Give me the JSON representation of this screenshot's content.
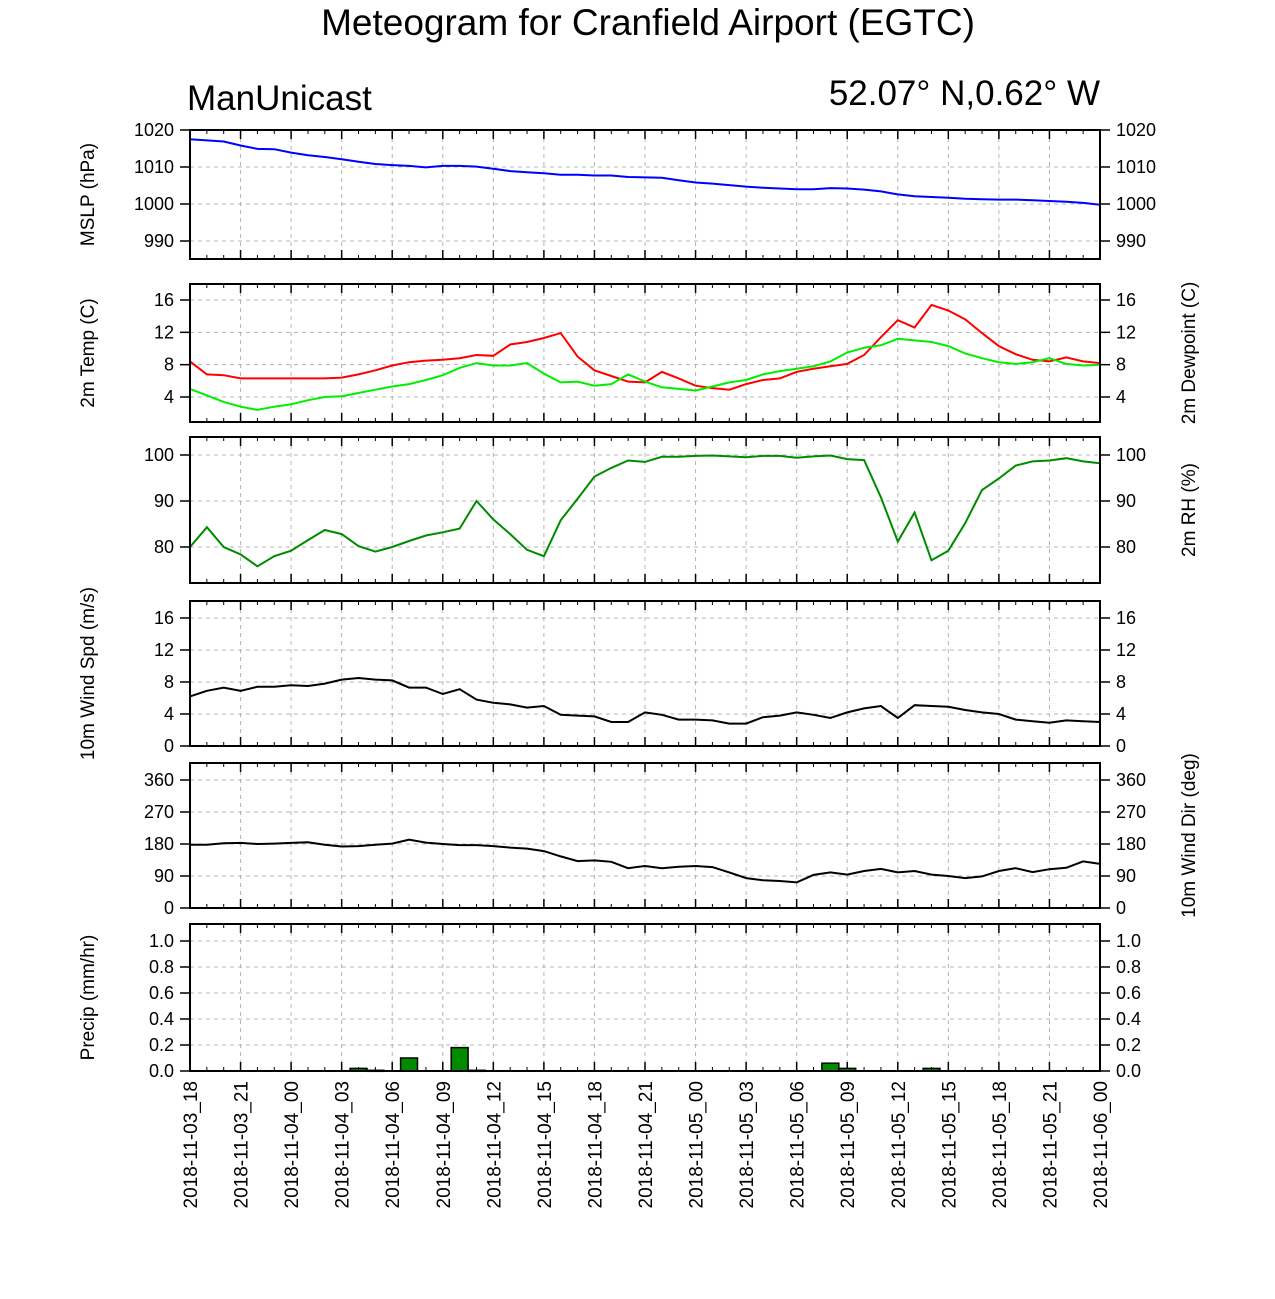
{
  "header": {
    "title": "Meteogram for Cranfield Airport (EGTC)",
    "model": "ManUnicast",
    "coords": "52.07° N,0.62° W"
  },
  "x_tick_labels": [
    "2018-11-03_18",
    "2018-11-03_21",
    "2018-11-04_00",
    "2018-11-04_03",
    "2018-11-04_06",
    "2018-11-04_09",
    "2018-11-04_12",
    "2018-11-04_15",
    "2018-11-04_18",
    "2018-11-04_21",
    "2018-11-05_00",
    "2018-11-05_03",
    "2018-11-05_06",
    "2018-11-05_09",
    "2018-11-05_12",
    "2018-11-05_15",
    "2018-11-05_18",
    "2018-11-05_21",
    "2018-11-06_00"
  ],
  "colors": {
    "mslp": "#0000ff",
    "temp": "#ff0000",
    "dewpoint": "#00ee00",
    "rh": "#008b00",
    "wind": "#000000",
    "precip": "#008b00",
    "grid": "#b4b4b4"
  },
  "chart_data": [
    {
      "type": "line",
      "ylabel": "MSLP (hPa)",
      "ylim": [
        985,
        1020
      ],
      "yticks": [
        990,
        1000,
        1010,
        1020
      ],
      "x_hours_range": [
        0,
        54
      ],
      "series": [
        {
          "color": "mslp",
          "x": [
            0,
            1,
            2,
            3,
            4,
            5,
            6,
            7,
            8,
            9,
            10,
            11,
            12,
            13,
            14,
            15,
            16,
            17,
            18,
            19,
            20,
            21,
            22,
            23,
            24,
            25,
            26,
            27,
            28,
            29,
            30,
            31,
            32,
            33,
            34,
            35,
            36,
            37,
            38,
            39,
            40,
            41,
            42,
            43,
            44,
            45,
            46,
            47,
            48,
            49,
            50,
            51,
            52,
            53,
            54
          ],
          "values": [
            1017.5,
            1017.2,
            1016.9,
            1015.8,
            1014.9,
            1014.8,
            1013.9,
            1013.2,
            1012.7,
            1012.1,
            1011.4,
            1010.8,
            1010.5,
            1010.3,
            1009.9,
            1010.3,
            1010.3,
            1010.1,
            1009.5,
            1008.9,
            1008.6,
            1008.3,
            1007.9,
            1007.9,
            1007.7,
            1007.7,
            1007.3,
            1007.2,
            1007.1,
            1006.4,
            1005.8,
            1005.5,
            1005.1,
            1004.7,
            1004.4,
            1004.2,
            1004.0,
            1004.0,
            1004.3,
            1004.2,
            1003.9,
            1003.4,
            1002.6,
            1002.1,
            1001.9,
            1001.7,
            1001.4,
            1001.3,
            1001.2,
            1001.2,
            1001.0,
            1000.8,
            1000.6,
            1000.3,
            999.8
          ]
        }
      ]
    },
    {
      "type": "line",
      "ylabel": "2m Temp (C)",
      "ylabel_right": "2m Dewpoint (C)",
      "ylim": [
        1,
        17
      ],
      "yticks": [
        4,
        8,
        12,
        16
      ],
      "x_hours_range": [
        0,
        54
      ],
      "series": [
        {
          "color": "temp",
          "x": [
            0,
            1,
            2,
            3,
            4,
            5,
            6,
            7,
            8,
            9,
            10,
            11,
            12,
            13,
            14,
            15,
            16,
            17,
            18,
            19,
            20,
            21,
            22,
            23,
            24,
            25,
            26,
            27,
            28,
            29,
            30,
            31,
            32,
            33,
            34,
            35,
            36,
            37,
            38,
            39,
            40,
            41,
            42,
            43,
            44,
            45,
            46,
            47,
            48,
            49,
            50,
            51,
            52,
            53,
            54
          ],
          "values": [
            8.4,
            6.8,
            6.7,
            6.3,
            6.3,
            6.3,
            6.3,
            6.3,
            6.3,
            6.4,
            6.8,
            7.3,
            7.9,
            8.3,
            8.5,
            8.6,
            8.8,
            9.2,
            9.1,
            10.5,
            10.8,
            11.3,
            11.9,
            9.0,
            7.3,
            6.6,
            5.9,
            5.8,
            7.1,
            6.3,
            5.4,
            5.1,
            4.9,
            5.6,
            6.1,
            6.3,
            7.1,
            7.5,
            7.8,
            8.1,
            9.2,
            11.4,
            13.5,
            12.6,
            15.4,
            14.7,
            13.6,
            11.9,
            10.3,
            9.3,
            8.6,
            8.4,
            8.9,
            8.4,
            8.2
          ]
        },
        {
          "color": "dewpoint",
          "x": [
            0,
            1,
            2,
            3,
            4,
            5,
            6,
            7,
            8,
            9,
            10,
            11,
            12,
            13,
            14,
            15,
            16,
            17,
            18,
            19,
            20,
            21,
            22,
            23,
            24,
            25,
            26,
            27,
            28,
            29,
            30,
            31,
            32,
            33,
            34,
            35,
            36,
            37,
            38,
            39,
            40,
            41,
            42,
            43,
            44,
            45,
            46,
            47,
            48,
            49,
            50,
            51,
            52,
            53,
            54
          ],
          "values": [
            5.0,
            4.2,
            3.4,
            2.8,
            2.4,
            2.8,
            3.1,
            3.6,
            4.0,
            4.1,
            4.5,
            4.9,
            5.3,
            5.6,
            6.1,
            6.7,
            7.6,
            8.2,
            7.9,
            7.9,
            8.2,
            6.9,
            5.8,
            5.9,
            5.4,
            5.6,
            6.8,
            5.9,
            5.2,
            5.0,
            4.8,
            5.3,
            5.8,
            6.1,
            6.8,
            7.2,
            7.5,
            7.8,
            8.4,
            9.5,
            10.1,
            10.4,
            11.2,
            11.0,
            10.8,
            10.3,
            9.4,
            8.8,
            8.3,
            8.1,
            8.3,
            8.8,
            8.1,
            7.9,
            8.0
          ]
        }
      ]
    },
    {
      "type": "line",
      "ylabel_right": "2m RH (%)",
      "ylim": [
        72,
        100
      ],
      "yticks": [
        80,
        90,
        100
      ],
      "x_hours_range": [
        0,
        54
      ],
      "series": [
        {
          "color": "rh",
          "x": [
            0,
            1,
            2,
            3,
            4,
            5,
            6,
            7,
            8,
            9,
            10,
            11,
            12,
            13,
            14,
            15,
            16,
            17,
            18,
            19,
            20,
            21,
            22,
            23,
            24,
            25,
            26,
            27,
            28,
            29,
            30,
            31,
            32,
            33,
            34,
            35,
            36,
            37,
            38,
            39,
            40,
            41,
            42,
            43,
            44,
            45,
            46,
            47,
            48,
            49,
            50,
            51,
            52,
            53,
            54
          ],
          "values": [
            80.0,
            84.3,
            80.0,
            78.4,
            75.8,
            78.0,
            79.2,
            81.5,
            83.7,
            82.8,
            80.2,
            79.0,
            80.0,
            81.3,
            82.5,
            83.2,
            84.0,
            90.0,
            86.0,
            82.8,
            79.4,
            78.0,
            85.8,
            90.5,
            95.3,
            97.2,
            98.8,
            98.5,
            99.6,
            99.6,
            99.8,
            99.9,
            99.7,
            99.5,
            99.8,
            99.8,
            99.4,
            99.7,
            99.9,
            99.1,
            98.9,
            90.8,
            81.2,
            87.5,
            77.1,
            79.2,
            85.2,
            92.4,
            94.9,
            97.7,
            98.6,
            98.8,
            99.3,
            98.6,
            98.2
          ]
        }
      ]
    },
    {
      "type": "line",
      "ylabel": "10m Wind Spd (m/s)",
      "ylim": [
        0,
        16
      ],
      "yticks": [
        0,
        4,
        8,
        12,
        16
      ],
      "x_hours_range": [
        0,
        54
      ],
      "series": [
        {
          "color": "wind",
          "x": [
            0,
            1,
            2,
            3,
            4,
            5,
            6,
            7,
            8,
            9,
            10,
            11,
            12,
            13,
            14,
            15,
            16,
            17,
            18,
            19,
            20,
            21,
            22,
            23,
            24,
            25,
            26,
            27,
            28,
            29,
            30,
            31,
            32,
            33,
            34,
            35,
            36,
            37,
            38,
            39,
            40,
            41,
            42,
            43,
            44,
            45,
            46,
            47,
            48,
            49,
            50,
            51,
            52,
            53,
            54
          ],
          "values": [
            6.2,
            6.9,
            7.3,
            6.9,
            7.4,
            7.4,
            7.6,
            7.5,
            7.8,
            8.3,
            8.5,
            8.3,
            8.2,
            7.3,
            7.3,
            6.5,
            7.1,
            5.8,
            5.4,
            5.2,
            4.8,
            5.0,
            3.9,
            3.8,
            3.7,
            3.0,
            3.0,
            4.2,
            3.9,
            3.3,
            3.3,
            3.2,
            2.8,
            2.8,
            3.6,
            3.8,
            4.2,
            3.9,
            3.5,
            4.2,
            4.7,
            5.0,
            3.5,
            5.1,
            5.0,
            4.9,
            4.5,
            4.2,
            4.0,
            3.3,
            3.1,
            2.9,
            3.2,
            3.1,
            3.0
          ]
        }
      ]
    },
    {
      "type": "line",
      "ylabel_right": "10m Wind Dir (deg)",
      "ylim": [
        0,
        360
      ],
      "yticks": [
        0,
        90,
        180,
        270,
        360
      ],
      "x_hours_range": [
        0,
        54
      ],
      "series": [
        {
          "color": "wind",
          "x": [
            0,
            1,
            2,
            3,
            4,
            5,
            6,
            7,
            8,
            9,
            10,
            11,
            12,
            13,
            14,
            15,
            16,
            17,
            18,
            19,
            20,
            21,
            22,
            23,
            24,
            25,
            26,
            27,
            28,
            29,
            30,
            31,
            32,
            33,
            34,
            35,
            36,
            37,
            38,
            39,
            40,
            41,
            42,
            43,
            44,
            45,
            46,
            47,
            48,
            49,
            50,
            51,
            52,
            53,
            54
          ],
          "values": [
            178,
            178,
            182,
            183,
            180,
            181,
            183,
            185,
            178,
            173,
            174,
            178,
            181,
            192,
            184,
            180,
            177,
            177,
            174,
            170,
            167,
            160,
            145,
            132,
            134,
            130,
            112,
            118,
            112,
            116,
            118,
            115,
            100,
            84,
            78,
            76,
            72,
            93,
            100,
            94,
            104,
            110,
            100,
            104,
            94,
            90,
            84,
            89,
            104,
            112,
            101,
            109,
            113,
            131,
            124
          ]
        }
      ]
    },
    {
      "type": "bar",
      "ylabel": "Precip (mm/hr)",
      "ylim": [
        0,
        1.0
      ],
      "yticks": [
        "0.0",
        "0.2",
        "0.4",
        "0.6",
        "0.8",
        "1.0"
      ],
      "x_hours_range": [
        0,
        54
      ],
      "bars": [
        {
          "hour": 10,
          "value": 0.02
        },
        {
          "hour": 11,
          "value": 0.005
        },
        {
          "hour": 13,
          "value": 0.1
        },
        {
          "hour": 16,
          "value": 0.18
        },
        {
          "hour": 17,
          "value": 0.005
        },
        {
          "hour": 38,
          "value": 0.06
        },
        {
          "hour": 39,
          "value": 0.02
        },
        {
          "hour": 44,
          "value": 0.02
        }
      ]
    }
  ]
}
